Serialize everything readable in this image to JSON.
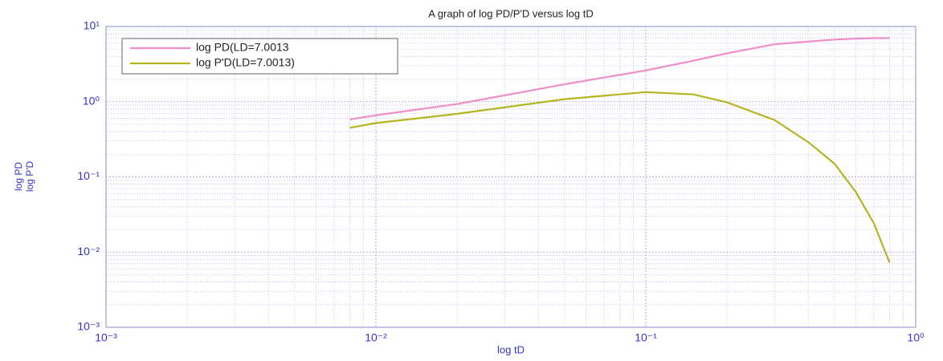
{
  "chart_data": {
    "type": "line",
    "title": "A graph of log PD/P'D versus log tD",
    "xlabel": "log tD",
    "ylabel": [
      "log PD",
      "log P'D"
    ],
    "x": [
      0.008,
      0.01,
      0.02,
      0.05,
      0.1,
      0.15,
      0.2,
      0.3,
      0.4,
      0.5,
      0.6,
      0.7,
      0.8
    ],
    "series": [
      {
        "name": "log PD(LD=7.0013",
        "color": "#f08cc8",
        "values": [
          0.58,
          0.66,
          0.93,
          1.7,
          2.6,
          3.5,
          4.4,
          5.8,
          6.3,
          6.7,
          6.9,
          7.0,
          7.0
        ]
      },
      {
        "name": "log P'D(LD=7.0013)",
        "color": "#b5b520",
        "values": [
          0.45,
          0.52,
          0.69,
          1.08,
          1.34,
          1.25,
          0.98,
          0.57,
          0.29,
          0.15,
          0.063,
          0.024,
          0.0073
        ]
      }
    ],
    "xscale": "log",
    "yscale": "log",
    "xlim": [
      0.001,
      1
    ],
    "ylim": [
      0.001,
      10
    ],
    "xticks": [
      {
        "value": 0.001,
        "label": "10⁻³"
      },
      {
        "value": 0.01,
        "label": "10⁻²"
      },
      {
        "value": 0.1,
        "label": "10⁻¹"
      },
      {
        "value": 1,
        "label": "10⁰"
      }
    ],
    "yticks": [
      {
        "value": 0.001,
        "label": "10⁻³"
      },
      {
        "value": 0.01,
        "label": "10⁻²"
      },
      {
        "value": 0.1,
        "label": "10⁻¹"
      },
      {
        "value": 1,
        "label": "10⁰"
      },
      {
        "value": 10,
        "label": "10¹"
      }
    ],
    "grid": true,
    "minor_grid": true,
    "legend": "upper left"
  }
}
